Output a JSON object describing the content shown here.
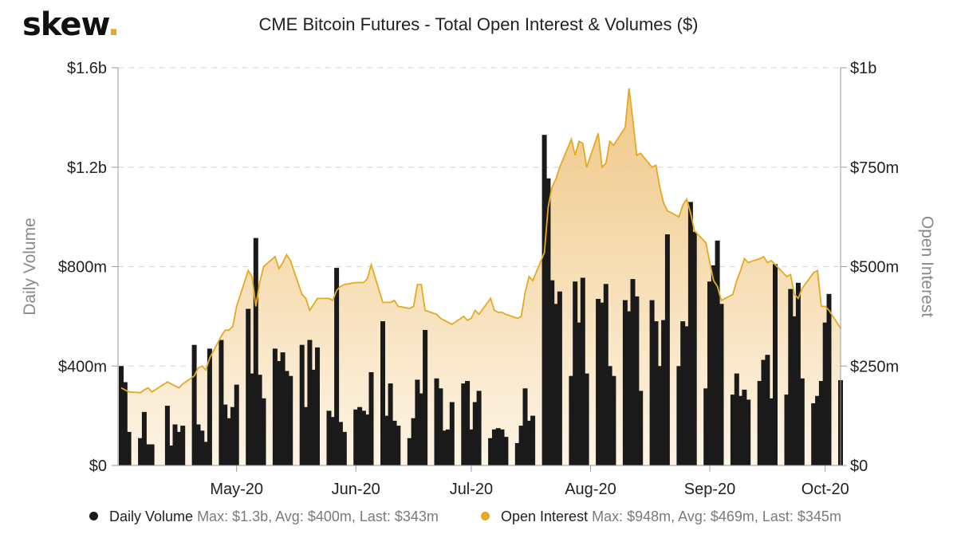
{
  "header": {
    "logo_text": "skew",
    "logo_dot": ".",
    "title": "CME Bitcoin Futures - Total Open Interest & Volumes ($)"
  },
  "legend": {
    "items": [
      {
        "label": "Daily Volume",
        "stats": "Max: $1.3b, Avg: $400m, Last: $343m",
        "color": "#1a1a1a"
      },
      {
        "label": "Open Interest",
        "stats": "Max: $948m, Avg: $469m, Last: $345m",
        "color": "#e6a920"
      }
    ]
  },
  "chart_data": {
    "type": "bar+area",
    "title": "CME Bitcoin Futures - Total Open Interest & Volumes ($)",
    "left_axis": {
      "label": "Daily Volume",
      "range": [
        0,
        1600000000
      ],
      "ticks": [
        0,
        400000000,
        800000000,
        1200000000,
        1600000000
      ],
      "tick_labels": [
        "$0",
        "$400m",
        "$800m",
        "$1.2b",
        "$1.6b"
      ]
    },
    "right_axis": {
      "label": "Open Interest",
      "range": [
        0,
        1000000000
      ],
      "ticks": [
        0,
        250000000,
        500000000,
        750000000,
        1000000000
      ],
      "tick_labels": [
        "$0",
        "$250m",
        "$500m",
        "$750m",
        "$1b"
      ]
    },
    "x_axis": {
      "start_date": "2020-04-01",
      "end_date": "2020-10-05",
      "tick_dates": [
        "2020-05-01",
        "2020-06-01",
        "2020-07-01",
        "2020-08-01",
        "2020-09-01",
        "2020-10-01"
      ],
      "tick_labels": [
        "May-20",
        "Jun-20",
        "Jul-20",
        "Aug-20",
        "Sep-20",
        "Oct-20"
      ]
    },
    "grid": true,
    "legend_position": "bottom",
    "colors": {
      "volume": "#1a1a1a",
      "open_interest": "#e6a920",
      "area_top": "#eec27a",
      "area_bottom": "#fdf3e2"
    },
    "series": [
      {
        "name": "Daily Volume",
        "axis": "left",
        "points": [
          [
            "2020-04-01",
            400
          ],
          [
            "2020-04-02",
            335
          ],
          [
            "2020-04-03",
            135
          ],
          [
            "2020-04-06",
            110
          ],
          [
            "2020-04-07",
            215
          ],
          [
            "2020-04-08",
            85
          ],
          [
            "2020-04-09",
            85
          ],
          [
            "2020-04-13",
            240
          ],
          [
            "2020-04-14",
            80
          ],
          [
            "2020-04-15",
            165
          ],
          [
            "2020-04-16",
            135
          ],
          [
            "2020-04-17",
            160
          ],
          [
            "2020-04-20",
            485
          ],
          [
            "2020-04-21",
            165
          ],
          [
            "2020-04-22",
            140
          ],
          [
            "2020-04-23",
            95
          ],
          [
            "2020-04-24",
            470
          ],
          [
            "2020-04-27",
            505
          ],
          [
            "2020-04-28",
            245
          ],
          [
            "2020-04-29",
            190
          ],
          [
            "2020-04-30",
            235
          ],
          [
            "2020-05-01",
            325
          ],
          [
            "2020-05-04",
            630
          ],
          [
            "2020-05-05",
            370
          ],
          [
            "2020-05-06",
            915
          ],
          [
            "2020-05-07",
            365
          ],
          [
            "2020-05-08",
            270
          ],
          [
            "2020-05-11",
            470
          ],
          [
            "2020-05-12",
            420
          ],
          [
            "2020-05-13",
            455
          ],
          [
            "2020-05-14",
            380
          ],
          [
            "2020-05-15",
            360
          ],
          [
            "2020-05-18",
            485
          ],
          [
            "2020-05-19",
            235
          ],
          [
            "2020-05-20",
            505
          ],
          [
            "2020-05-21",
            385
          ],
          [
            "2020-05-22",
            475
          ],
          [
            "2020-05-25",
            220
          ],
          [
            "2020-05-26",
            195
          ],
          [
            "2020-05-27",
            795
          ],
          [
            "2020-05-28",
            175
          ],
          [
            "2020-05-29",
            135
          ],
          [
            "2020-06-01",
            225
          ],
          [
            "2020-06-02",
            235
          ],
          [
            "2020-06-03",
            220
          ],
          [
            "2020-06-04",
            205
          ],
          [
            "2020-06-05",
            375
          ],
          [
            "2020-06-08",
            580
          ],
          [
            "2020-06-09",
            200
          ],
          [
            "2020-06-10",
            330
          ],
          [
            "2020-06-11",
            180
          ],
          [
            "2020-06-12",
            160
          ],
          [
            "2020-06-15",
            110
          ],
          [
            "2020-06-16",
            190
          ],
          [
            "2020-06-17",
            345
          ],
          [
            "2020-06-18",
            290
          ],
          [
            "2020-06-19",
            545
          ],
          [
            "2020-06-22",
            350
          ],
          [
            "2020-06-23",
            310
          ],
          [
            "2020-06-24",
            140
          ],
          [
            "2020-06-25",
            145
          ],
          [
            "2020-06-26",
            255
          ],
          [
            "2020-06-29",
            330
          ],
          [
            "2020-06-30",
            340
          ],
          [
            "2020-07-01",
            145
          ],
          [
            "2020-07-02",
            255
          ],
          [
            "2020-07-03",
            300
          ],
          [
            "2020-07-06",
            110
          ],
          [
            "2020-07-07",
            145
          ],
          [
            "2020-07-08",
            150
          ],
          [
            "2020-07-09",
            145
          ],
          [
            "2020-07-10",
            115
          ],
          [
            "2020-07-13",
            90
          ],
          [
            "2020-07-14",
            160
          ],
          [
            "2020-07-15",
            310
          ],
          [
            "2020-07-16",
            180
          ],
          [
            "2020-07-17",
            200
          ],
          [
            "2020-07-20",
            1330
          ],
          [
            "2020-07-21",
            1155
          ],
          [
            "2020-07-22",
            745
          ],
          [
            "2020-07-23",
            650
          ],
          [
            "2020-07-24",
            700
          ],
          [
            "2020-07-27",
            360
          ],
          [
            "2020-07-28",
            740
          ],
          [
            "2020-07-29",
            575
          ],
          [
            "2020-07-30",
            755
          ],
          [
            "2020-07-31",
            370
          ],
          [
            "2020-08-03",
            670
          ],
          [
            "2020-08-04",
            655
          ],
          [
            "2020-08-05",
            730
          ],
          [
            "2020-08-06",
            400
          ],
          [
            "2020-08-07",
            360
          ],
          [
            "2020-08-10",
            665
          ],
          [
            "2020-08-11",
            620
          ],
          [
            "2020-08-12",
            750
          ],
          [
            "2020-08-13",
            680
          ],
          [
            "2020-08-14",
            300
          ],
          [
            "2020-08-17",
            665
          ],
          [
            "2020-08-18",
            580
          ],
          [
            "2020-08-19",
            400
          ],
          [
            "2020-08-20",
            585
          ],
          [
            "2020-08-21",
            930
          ],
          [
            "2020-08-24",
            400
          ],
          [
            "2020-08-25",
            580
          ],
          [
            "2020-08-26",
            560
          ],
          [
            "2020-08-27",
            1060
          ],
          [
            "2020-08-28",
            940
          ],
          [
            "2020-08-31",
            310
          ],
          [
            "2020-09-01",
            740
          ],
          [
            "2020-09-02",
            805
          ],
          [
            "2020-09-03",
            905
          ],
          [
            "2020-09-04",
            650
          ],
          [
            "2020-09-07",
            285
          ],
          [
            "2020-09-08",
            370
          ],
          [
            "2020-09-09",
            280
          ],
          [
            "2020-09-10",
            305
          ],
          [
            "2020-09-11",
            265
          ],
          [
            "2020-09-14",
            340
          ],
          [
            "2020-09-15",
            425
          ],
          [
            "2020-09-16",
            445
          ],
          [
            "2020-09-17",
            270
          ],
          [
            "2020-09-18",
            810
          ],
          [
            "2020-09-21",
            285
          ],
          [
            "2020-09-22",
            710
          ],
          [
            "2020-09-23",
            600
          ],
          [
            "2020-09-24",
            735
          ],
          [
            "2020-09-25",
            350
          ],
          [
            "2020-09-28",
            250
          ],
          [
            "2020-09-29",
            280
          ],
          [
            "2020-09-30",
            340
          ],
          [
            "2020-10-01",
            575
          ],
          [
            "2020-10-02",
            690
          ],
          [
            "2020-10-05",
            343
          ]
        ]
      },
      {
        "name": "Open Interest",
        "axis": "right",
        "points": [
          [
            "2020-04-01",
            195
          ],
          [
            "2020-04-02",
            190
          ],
          [
            "2020-04-03",
            185
          ],
          [
            "2020-04-06",
            183
          ],
          [
            "2020-04-07",
            190
          ],
          [
            "2020-04-08",
            195
          ],
          [
            "2020-04-09",
            185
          ],
          [
            "2020-04-13",
            210
          ],
          [
            "2020-04-14",
            205
          ],
          [
            "2020-04-15",
            200
          ],
          [
            "2020-04-16",
            195
          ],
          [
            "2020-04-17",
            205
          ],
          [
            "2020-04-20",
            225
          ],
          [
            "2020-04-21",
            245
          ],
          [
            "2020-04-22",
            250
          ],
          [
            "2020-04-23",
            240
          ],
          [
            "2020-04-24",
            270
          ],
          [
            "2020-04-27",
            325
          ],
          [
            "2020-04-28",
            340
          ],
          [
            "2020-04-29",
            340
          ],
          [
            "2020-04-30",
            350
          ],
          [
            "2020-05-01",
            400
          ],
          [
            "2020-05-04",
            490
          ],
          [
            "2020-05-05",
            475
          ],
          [
            "2020-05-06",
            400
          ],
          [
            "2020-05-07",
            460
          ],
          [
            "2020-05-08",
            500
          ],
          [
            "2020-05-11",
            525
          ],
          [
            "2020-05-12",
            495
          ],
          [
            "2020-05-13",
            510
          ],
          [
            "2020-05-14",
            530
          ],
          [
            "2020-05-15",
            515
          ],
          [
            "2020-05-18",
            430
          ],
          [
            "2020-05-19",
            420
          ],
          [
            "2020-05-20",
            390
          ],
          [
            "2020-05-21",
            405
          ],
          [
            "2020-05-22",
            420
          ],
          [
            "2020-05-25",
            420
          ],
          [
            "2020-05-26",
            415
          ],
          [
            "2020-05-27",
            440
          ],
          [
            "2020-05-28",
            450
          ],
          [
            "2020-05-29",
            455
          ],
          [
            "2020-06-01",
            460
          ],
          [
            "2020-06-02",
            460
          ],
          [
            "2020-06-03",
            460
          ],
          [
            "2020-06-04",
            470
          ],
          [
            "2020-06-05",
            505
          ],
          [
            "2020-06-08",
            410
          ],
          [
            "2020-06-09",
            410
          ],
          [
            "2020-06-10",
            410
          ],
          [
            "2020-06-11",
            415
          ],
          [
            "2020-06-12",
            400
          ],
          [
            "2020-06-15",
            395
          ],
          [
            "2020-06-16",
            400
          ],
          [
            "2020-06-17",
            455
          ],
          [
            "2020-06-18",
            455
          ],
          [
            "2020-06-19",
            390
          ],
          [
            "2020-06-22",
            380
          ],
          [
            "2020-06-23",
            370
          ],
          [
            "2020-06-24",
            365
          ],
          [
            "2020-06-25",
            360
          ],
          [
            "2020-06-26",
            355
          ],
          [
            "2020-06-29",
            375
          ],
          [
            "2020-06-30",
            365
          ],
          [
            "2020-07-01",
            370
          ],
          [
            "2020-07-02",
            390
          ],
          [
            "2020-07-03",
            380
          ],
          [
            "2020-07-06",
            420
          ],
          [
            "2020-07-07",
            390
          ],
          [
            "2020-07-08",
            385
          ],
          [
            "2020-07-09",
            385
          ],
          [
            "2020-07-10",
            380
          ],
          [
            "2020-07-13",
            370
          ],
          [
            "2020-07-14",
            375
          ],
          [
            "2020-07-15",
            435
          ],
          [
            "2020-07-16",
            475
          ],
          [
            "2020-07-17",
            465
          ],
          [
            "2020-07-20",
            535
          ],
          [
            "2020-07-21",
            650
          ],
          [
            "2020-07-22",
            700
          ],
          [
            "2020-07-23",
            720
          ],
          [
            "2020-07-24",
            750
          ],
          [
            "2020-07-27",
            820
          ],
          [
            "2020-07-28",
            780
          ],
          [
            "2020-07-29",
            815
          ],
          [
            "2020-07-30",
            810
          ],
          [
            "2020-07-31",
            750
          ],
          [
            "2020-08-03",
            835
          ],
          [
            "2020-08-04",
            750
          ],
          [
            "2020-08-05",
            760
          ],
          [
            "2020-08-06",
            815
          ],
          [
            "2020-08-07",
            805
          ],
          [
            "2020-08-10",
            850
          ],
          [
            "2020-08-11",
            948
          ],
          [
            "2020-08-12",
            870
          ],
          [
            "2020-08-13",
            780
          ],
          [
            "2020-08-14",
            785
          ],
          [
            "2020-08-17",
            750
          ],
          [
            "2020-08-18",
            755
          ],
          [
            "2020-08-19",
            700
          ],
          [
            "2020-08-20",
            660
          ],
          [
            "2020-08-21",
            640
          ],
          [
            "2020-08-24",
            625
          ],
          [
            "2020-08-25",
            655
          ],
          [
            "2020-08-26",
            670
          ],
          [
            "2020-08-27",
            635
          ],
          [
            "2020-08-28",
            590
          ],
          [
            "2020-08-31",
            560
          ],
          [
            "2020-09-01",
            510
          ],
          [
            "2020-09-02",
            465
          ],
          [
            "2020-09-03",
            450
          ],
          [
            "2020-09-04",
            415
          ],
          [
            "2020-09-07",
            430
          ],
          [
            "2020-09-08",
            465
          ],
          [
            "2020-09-09",
            490
          ],
          [
            "2020-09-10",
            520
          ],
          [
            "2020-09-11",
            510
          ],
          [
            "2020-09-14",
            520
          ],
          [
            "2020-09-15",
            525
          ],
          [
            "2020-09-16",
            510
          ],
          [
            "2020-09-17",
            515
          ],
          [
            "2020-09-18",
            505
          ],
          [
            "2020-09-21",
            475
          ],
          [
            "2020-09-22",
            480
          ],
          [
            "2020-09-23",
            430
          ],
          [
            "2020-09-24",
            420
          ],
          [
            "2020-09-25",
            445
          ],
          [
            "2020-09-28",
            485
          ],
          [
            "2020-09-29",
            490
          ],
          [
            "2020-09-30",
            400
          ],
          [
            "2020-10-01",
            400
          ],
          [
            "2020-10-02",
            390
          ],
          [
            "2020-10-05",
            345
          ]
        ]
      }
    ]
  }
}
